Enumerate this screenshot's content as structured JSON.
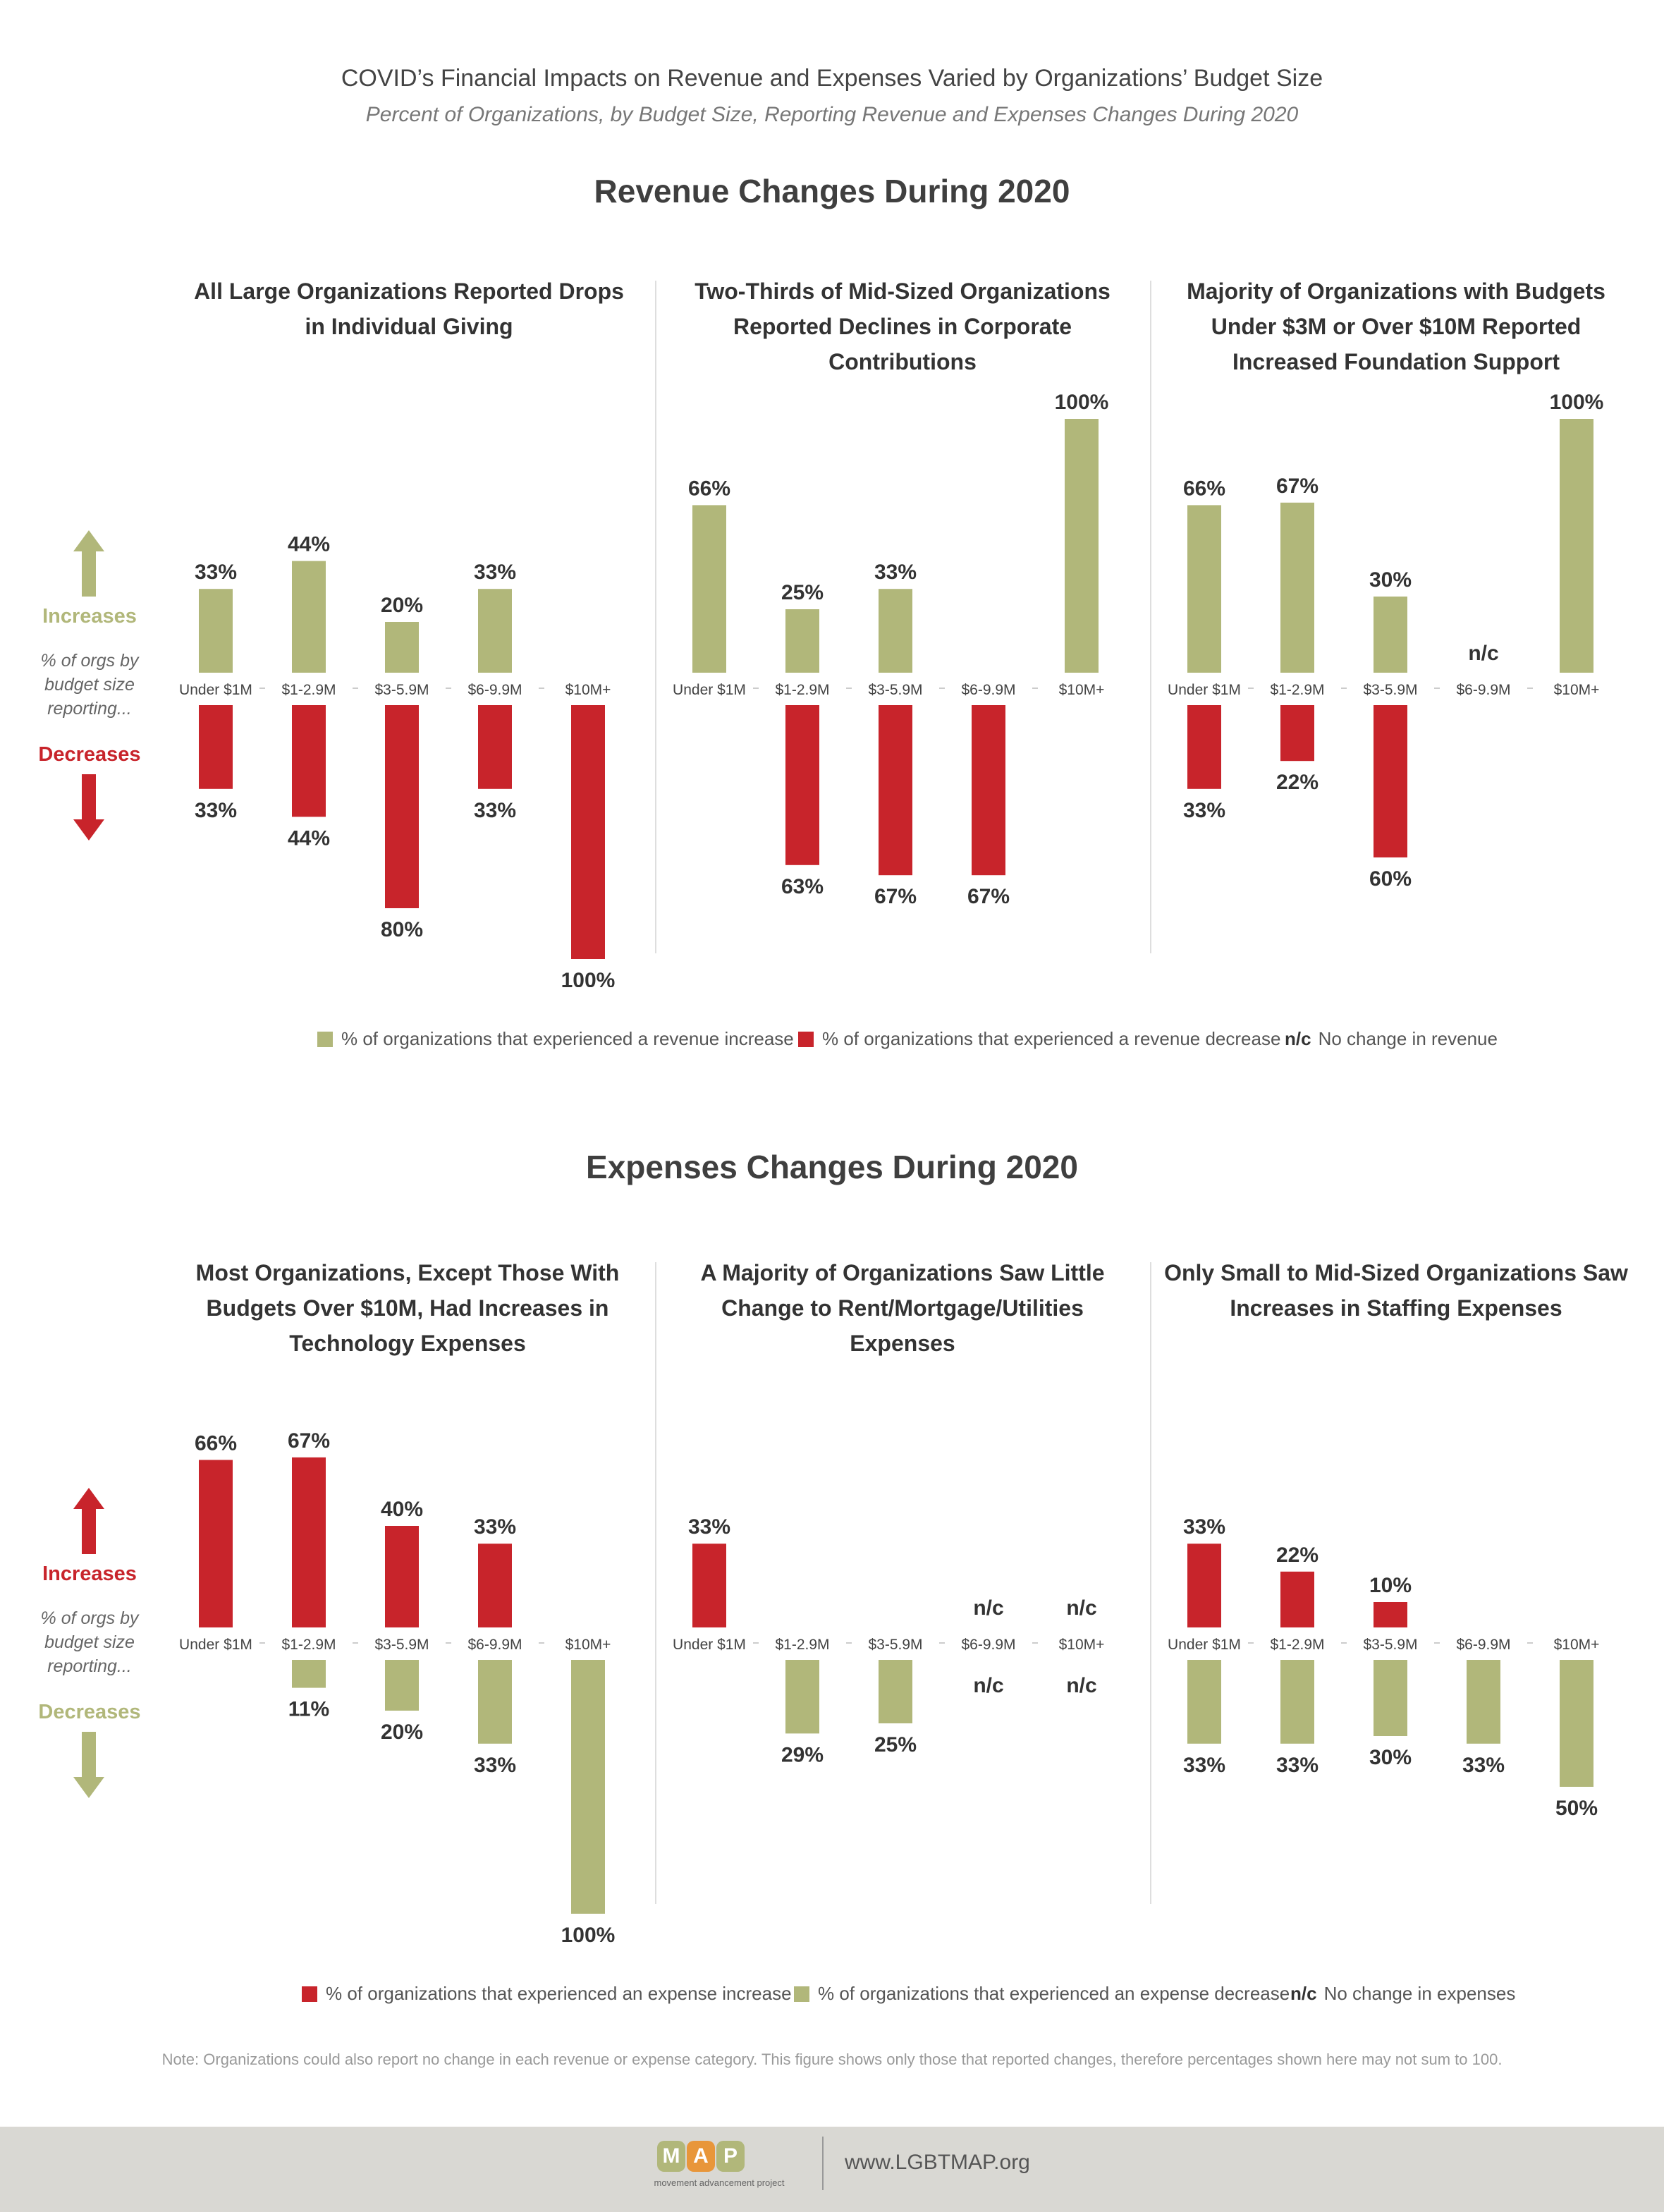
{
  "header": {
    "title": "COVID’s Financial Impacts on Revenue and Expenses Varied by Organizations’ Budget Size",
    "subtitle": "Percent of Organizations, by Budget Size, Reporting Revenue and Expenses Changes During 2020"
  },
  "colors": {
    "green": "#b1b77a",
    "red": "#c8242b",
    "axis": "#cccccc"
  },
  "revenue": {
    "section_title": "Revenue Changes During 2020",
    "increases_label": "Increases",
    "decreases_label": "Decreases",
    "axis_note": "% of orgs by budget size reporting...",
    "legend": {
      "increase": "% of organizations that experienced a revenue increase",
      "decrease": "% of organizations that experienced a revenue decrease",
      "nc_mark": "n/c",
      "nc_text": "No change in revenue"
    }
  },
  "expenses": {
    "section_title": "Expenses Changes During 2020",
    "increases_label": "Increases",
    "decreases_label": "Decreases",
    "axis_note": "% of orgs by budget size reporting...",
    "legend": {
      "increase": "% of organizations that experienced an expense increase",
      "decrease": "% of organizations that experienced an expense decrease",
      "nc_mark": "n/c",
      "nc_text": "No change in expenses"
    }
  },
  "chart_data": [
    {
      "type": "bar",
      "group": "revenue",
      "title": "All Large Organizations Reported Drops in Individual Giving",
      "categories": [
        "Under $1M",
        "$1-2.9M",
        "$3-5.9M",
        "$6-9.9M",
        "$10M+"
      ],
      "up": {
        "color": "green",
        "values": [
          33,
          44,
          20,
          33,
          null
        ],
        "labels": [
          "33%",
          "44%",
          "20%",
          "33%",
          ""
        ]
      },
      "down": {
        "color": "red",
        "values": [
          33,
          44,
          80,
          33,
          100
        ],
        "labels": [
          "33%",
          "44%",
          "80%",
          "33%",
          "100%"
        ]
      },
      "ylim": [
        -100,
        100
      ]
    },
    {
      "type": "bar",
      "group": "revenue",
      "title": "Two-Thirds of Mid-Sized Organizations Reported Declines in Corporate Contributions",
      "categories": [
        "Under $1M",
        "$1-2.9M",
        "$3-5.9M",
        "$6-9.9M",
        "$10M+"
      ],
      "up": {
        "color": "green",
        "values": [
          66,
          25,
          33,
          null,
          100
        ],
        "labels": [
          "66%",
          "25%",
          "33%",
          "",
          "100%"
        ]
      },
      "down": {
        "color": "red",
        "values": [
          null,
          63,
          67,
          67,
          null
        ],
        "labels": [
          "",
          "63%",
          "67%",
          "67%",
          ""
        ]
      },
      "ylim": [
        -100,
        100
      ]
    },
    {
      "type": "bar",
      "group": "revenue",
      "title": "Majority of Organizations with Budgets Under $3M or Over $10M Reported Increased Foundation Support",
      "categories": [
        "Under $1M",
        "$1-2.9M",
        "$3-5.9M",
        "$6-9.9M",
        "$10M+"
      ],
      "up": {
        "color": "green",
        "values": [
          66,
          67,
          30,
          null,
          100
        ],
        "labels": [
          "66%",
          "67%",
          "30%",
          "n/c",
          "100%"
        ]
      },
      "down": {
        "color": "red",
        "values": [
          33,
          22,
          60,
          null,
          null
        ],
        "labels": [
          "33%",
          "22%",
          "60%",
          "",
          ""
        ]
      },
      "ylim": [
        -100,
        100
      ]
    },
    {
      "type": "bar",
      "group": "expenses",
      "title": "Most Organizations, Except Those With Budgets Over $10M, Had Increases in Technology Expenses",
      "categories": [
        "Under $1M",
        "$1-2.9M",
        "$3-5.9M",
        "$6-9.9M",
        "$10M+"
      ],
      "up": {
        "color": "red",
        "values": [
          66,
          67,
          40,
          33,
          null
        ],
        "labels": [
          "66%",
          "67%",
          "40%",
          "33%",
          ""
        ]
      },
      "down": {
        "color": "green",
        "values": [
          null,
          11,
          20,
          33,
          100
        ],
        "labels": [
          "",
          "11%",
          "20%",
          "33%",
          "100%"
        ]
      },
      "ylim": [
        -100,
        100
      ]
    },
    {
      "type": "bar",
      "group": "expenses",
      "title": "A Majority of Organizations Saw Little Change to Rent/Mortgage/Utilities Expenses",
      "categories": [
        "Under $1M",
        "$1-2.9M",
        "$3-5.9M",
        "$6-9.9M",
        "$10M+"
      ],
      "up": {
        "color": "red",
        "values": [
          33,
          null,
          null,
          null,
          null
        ],
        "labels": [
          "33%",
          "",
          "",
          "n/c",
          "n/c"
        ]
      },
      "down": {
        "color": "green",
        "values": [
          null,
          29,
          25,
          null,
          null
        ],
        "labels": [
          "",
          "29%",
          "25%",
          "n/c",
          "n/c"
        ]
      },
      "ylim": [
        -100,
        100
      ]
    },
    {
      "type": "bar",
      "group": "expenses",
      "title": "Only Small to Mid-Sized Organizations Saw Increases in Staffing Expenses",
      "categories": [
        "Under $1M",
        "$1-2.9M",
        "$3-5.9M",
        "$6-9.9M",
        "$10M+"
      ],
      "up": {
        "color": "red",
        "values": [
          33,
          22,
          10,
          null,
          null
        ],
        "labels": [
          "33%",
          "22%",
          "10%",
          "",
          ""
        ]
      },
      "down": {
        "color": "green",
        "values": [
          33,
          33,
          30,
          33,
          50
        ],
        "labels": [
          "33%",
          "33%",
          "30%",
          "33%",
          "50%"
        ]
      },
      "ylim": [
        -100,
        100
      ]
    }
  ],
  "note": "Note: Organizations could also report no change in each revenue or expense category. This figure shows only those that reported changes, therefore percentages shown here may not sum to 100.",
  "footer": {
    "logo_letters": [
      "M",
      "A",
      "P"
    ],
    "logo_tagline": "movement advancement project",
    "url": "www.LGBTMAP.org"
  }
}
